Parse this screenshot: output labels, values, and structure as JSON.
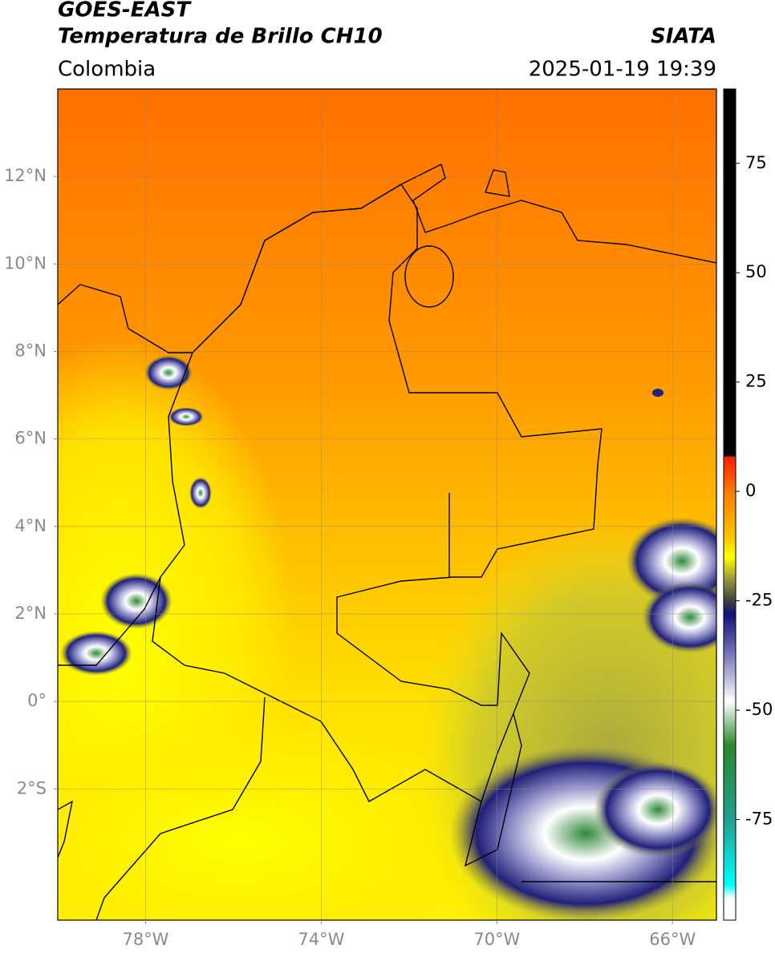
{
  "header": {
    "title": "GOES-EAST",
    "subtitle": "Temperatura de Brillo CH10",
    "source": "SIATA",
    "region": "Colombia",
    "timestamp": "2025-01-19 19:39"
  },
  "map": {
    "xlim": [
      -80,
      -65
    ],
    "ylim": [
      -5,
      14
    ],
    "grid": true,
    "xticks": [
      {
        "value": -78,
        "label": "78°W"
      },
      {
        "value": -74,
        "label": "74°W"
      },
      {
        "value": -70,
        "label": "70°W"
      },
      {
        "value": -66,
        "label": "66°W"
      }
    ],
    "yticks": [
      {
        "value": -2,
        "label": "2°S"
      },
      {
        "value": 0,
        "label": "0°"
      },
      {
        "value": 2,
        "label": "2°N"
      },
      {
        "value": 4,
        "label": "4°N"
      },
      {
        "value": 6,
        "label": "6°N"
      },
      {
        "value": 8,
        "label": "8°N"
      },
      {
        "value": 10,
        "label": "10°N"
      },
      {
        "value": 12,
        "label": "12°N"
      }
    ]
  },
  "colorbar": {
    "lim": [
      -98,
      92
    ],
    "ticks": [
      -75,
      -50,
      -25,
      0,
      25,
      50,
      75
    ],
    "colormap": [
      {
        "value": 92,
        "color": "#000000"
      },
      {
        "value": 8,
        "color": "#000000"
      },
      {
        "value": 8,
        "color": "#ff1a00"
      },
      {
        "value": 0,
        "color": "#ff7a00"
      },
      {
        "value": -10,
        "color": "#ffc000"
      },
      {
        "value": -15,
        "color": "#ffff00"
      },
      {
        "value": -20,
        "color": "#9a9a40"
      },
      {
        "value": -25,
        "color": "#404040"
      },
      {
        "value": -28,
        "color": "#10107a"
      },
      {
        "value": -38,
        "color": "#8080c0"
      },
      {
        "value": -48,
        "color": "#ffffff"
      },
      {
        "value": -58,
        "color": "#2a8a2a"
      },
      {
        "value": -75,
        "color": "#20a090"
      },
      {
        "value": -90,
        "color": "#00ffff"
      },
      {
        "value": -93,
        "color": "#ffffff"
      },
      {
        "value": -98,
        "color": "#ffffff"
      }
    ]
  }
}
